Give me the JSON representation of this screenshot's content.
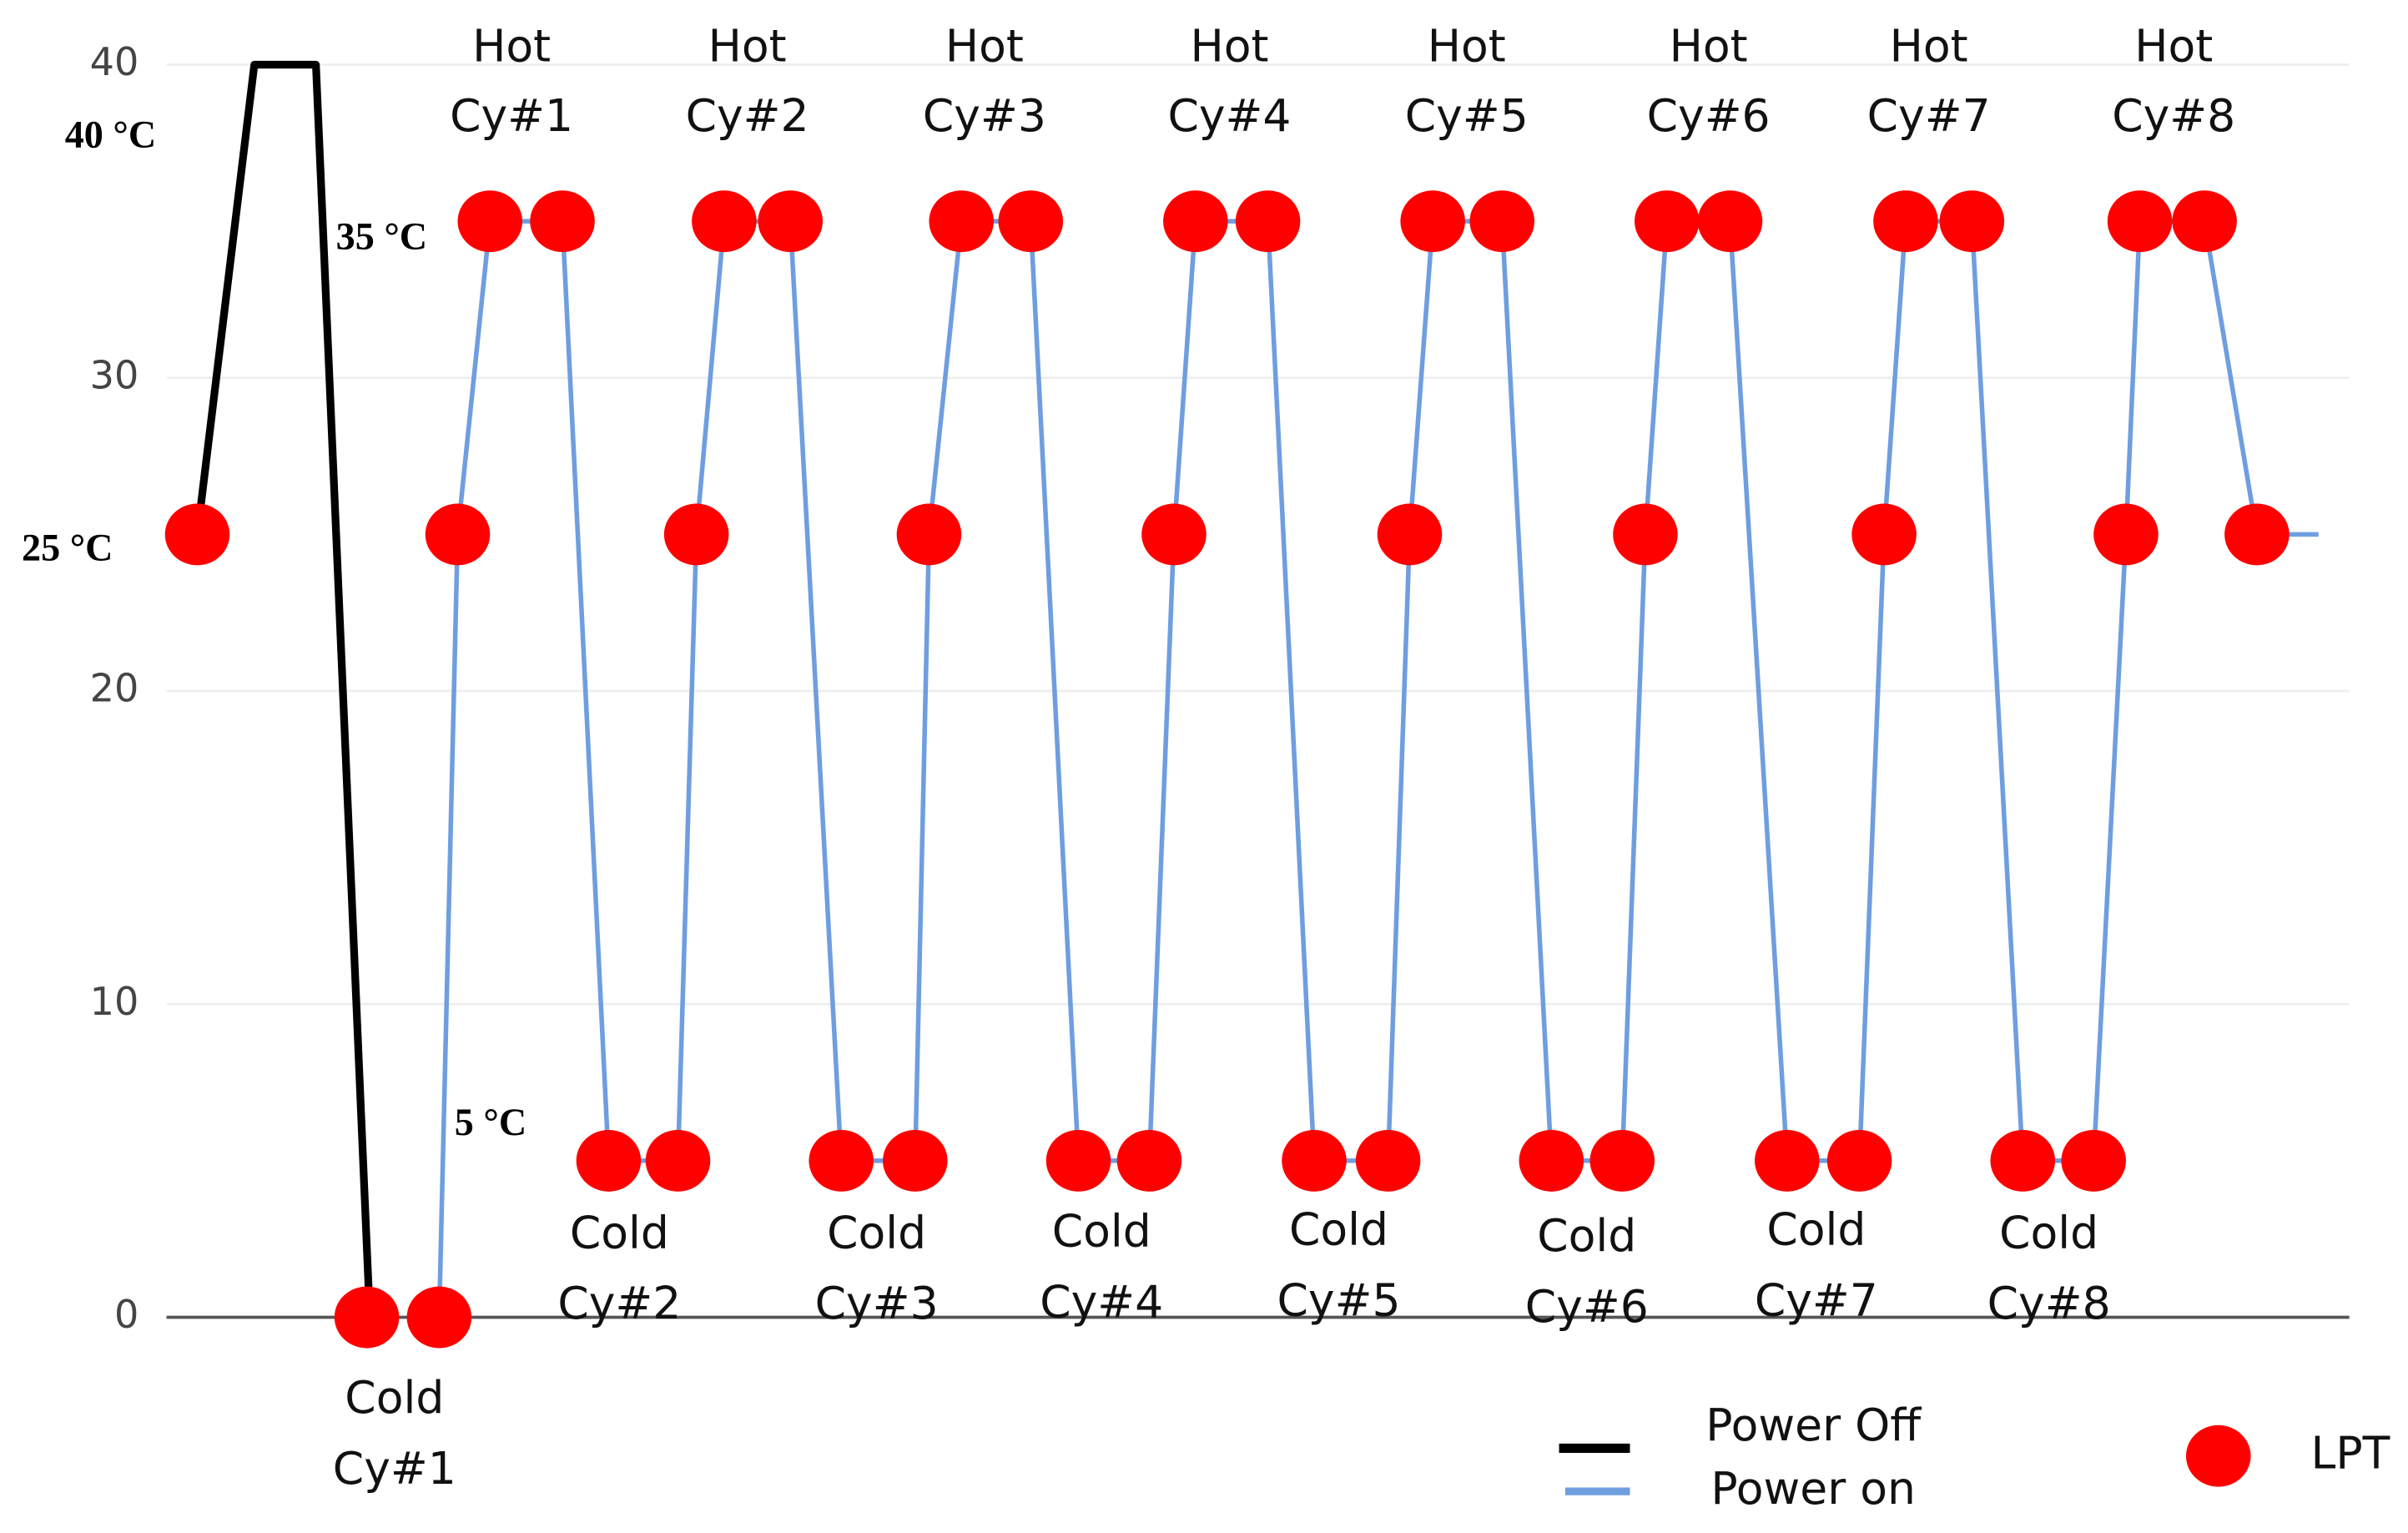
{
  "chart_data": {
    "type": "line",
    "xlim": [
      0,
      1563
    ],
    "ylim": [
      0,
      40
    ],
    "yticks": [
      0,
      10,
      20,
      30,
      40
    ],
    "grid": true,
    "series": [
      {
        "name": "Power Off",
        "color": "#000000",
        "style": "line",
        "x": [
          128,
          165,
          205,
          240
        ],
        "values": [
          25,
          40,
          40,
          0
        ]
      },
      {
        "name": "Power on",
        "color": "#6f9ee0",
        "style": "line",
        "x": [
          285,
          297,
          318,
          365,
          395,
          440,
          452,
          470,
          513,
          546,
          594,
          603,
          624,
          669,
          700,
          746,
          762,
          776,
          823,
          853,
          901,
          915,
          930,
          975,
          1007,
          1053,
          1068,
          1082,
          1123,
          1160,
          1207,
          1223,
          1237,
          1280,
          1313,
          1359,
          1380,
          1389,
          1431,
          1465,
          1505
        ],
        "values": [
          0,
          25,
          35,
          35,
          5,
          5,
          25,
          35,
          35,
          5,
          5,
          25,
          35,
          35,
          5,
          5,
          25,
          35,
          35,
          5,
          5,
          25,
          35,
          35,
          5,
          5,
          25,
          35,
          35,
          5,
          5,
          25,
          35,
          35,
          5,
          5,
          25,
          35,
          35,
          25,
          25
        ]
      },
      {
        "name": "LPT",
        "color": "#ff0000",
        "style": "markers",
        "x": [
          128,
          238,
          285,
          297,
          318,
          365,
          395,
          440,
          452,
          470,
          513,
          546,
          594,
          603,
          624,
          669,
          700,
          746,
          762,
          776,
          823,
          853,
          901,
          915,
          930,
          975,
          1007,
          1053,
          1068,
          1082,
          1123,
          1160,
          1207,
          1223,
          1237,
          1280,
          1313,
          1359,
          1380,
          1389,
          1431,
          1465
        ],
        "values": [
          25,
          0,
          0,
          25,
          35,
          35,
          5,
          5,
          25,
          35,
          35,
          5,
          5,
          25,
          35,
          35,
          5,
          5,
          25,
          35,
          35,
          5,
          5,
          25,
          35,
          35,
          5,
          5,
          25,
          35,
          35,
          5,
          5,
          25,
          35,
          35,
          5,
          5,
          25,
          35,
          35,
          25
        ]
      }
    ],
    "hot_labels": [
      [
        "Hot",
        "Cy#1"
      ],
      [
        "Hot",
        "Cy#2"
      ],
      [
        "Hot",
        "Cy#3"
      ],
      [
        "Hot",
        "Cy#4"
      ],
      [
        "Hot",
        "Cy#5"
      ],
      [
        "Hot",
        "Cy#6"
      ],
      [
        "Hot",
        "Cy#7"
      ],
      [
        "Hot",
        "Cy#8"
      ]
    ],
    "cold_labels": [
      [
        "Cold",
        "Cy#1"
      ],
      [
        "Cold",
        "Cy#2"
      ],
      [
        "Cold",
        "Cy#3"
      ],
      [
        "Cold",
        "Cy#4"
      ],
      [
        "Cold",
        "Cy#5"
      ],
      [
        "Cold",
        "Cy#6"
      ],
      [
        "Cold",
        "Cy#7"
      ],
      [
        "Cold",
        "Cy#8"
      ]
    ],
    "annotations": [
      "40 °C",
      "35 °C",
      "25 °C",
      "5 °C"
    ]
  }
}
